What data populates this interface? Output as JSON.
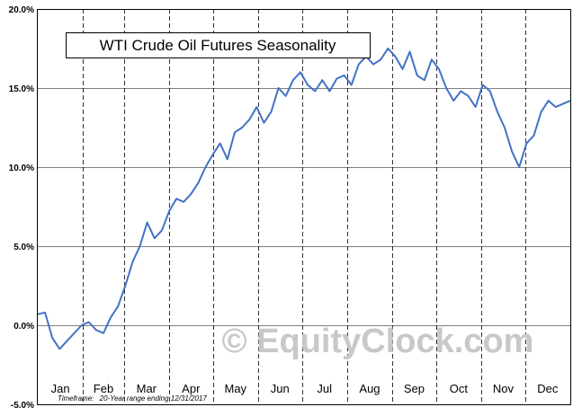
{
  "chart_data": {
    "type": "line",
    "title": "WTI Crude Oil Futures Seasonality",
    "xlabel": "",
    "ylabel": "",
    "ylim": [
      -5,
      20
    ],
    "yticks": [
      -5,
      0,
      5,
      10,
      15,
      20
    ],
    "ytick_labels": [
      "-5.0%",
      "0.0%",
      "5.0%",
      "10.0%",
      "15.0%",
      "20.0%"
    ],
    "months": [
      "Jan",
      "Feb",
      "Mar",
      "Apr",
      "May",
      "Jun",
      "Jul",
      "Aug",
      "Sep",
      "Oct",
      "Nov",
      "Dec"
    ],
    "grid": true,
    "line_color": "#4472c4",
    "series": [
      {
        "x": [
          0,
          5,
          10,
          15,
          20,
          25,
          30,
          35,
          40,
          45,
          50,
          55,
          60,
          65,
          70,
          75,
          80,
          85,
          90,
          95,
          100,
          105,
          110,
          115,
          120,
          125,
          130,
          135,
          140,
          145,
          150,
          155,
          160,
          165,
          170,
          175,
          180,
          185,
          190,
          195,
          200,
          205,
          210,
          215,
          220,
          225,
          230,
          235,
          240,
          245,
          250,
          255,
          260,
          265,
          270,
          275,
          280,
          285,
          290,
          295,
          300,
          305,
          310,
          315,
          320,
          325,
          330,
          335,
          340,
          345,
          350,
          355,
          360,
          365
        ],
        "values": [
          0.7,
          0.8,
          -0.8,
          -1.5,
          -1.0,
          -0.5,
          0.0,
          0.2,
          -0.3,
          -0.5,
          0.5,
          1.2,
          2.5,
          4.0,
          5.0,
          6.5,
          5.5,
          6.0,
          7.2,
          8.0,
          7.8,
          8.3,
          9.0,
          10.0,
          10.8,
          11.5,
          10.5,
          12.2,
          12.5,
          13.0,
          13.8,
          12.8,
          13.5,
          15.0,
          14.5,
          15.5,
          16.0,
          15.2,
          14.8,
          15.5,
          14.8,
          15.6,
          15.8,
          15.2,
          16.5,
          17.0,
          16.5,
          16.8,
          17.5,
          17.0,
          16.2,
          17.3,
          15.8,
          15.5,
          16.8,
          16.2,
          15.0,
          14.2,
          14.8,
          14.5,
          13.8,
          15.2,
          14.8,
          13.5,
          12.5,
          11.0,
          10.0,
          11.5,
          12.0,
          13.5,
          14.2,
          13.8,
          14.0,
          14.2
        ]
      }
    ],
    "annotations": {
      "timeframe_label": "Timeframe:",
      "timeframe_value": "20-Year range ending 12/31/2017",
      "watermark": "© EquityClock.com"
    }
  }
}
